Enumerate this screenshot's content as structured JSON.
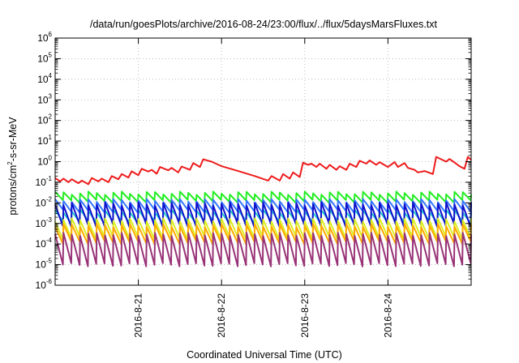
{
  "chart_data": {
    "type": "line",
    "title": "/data/run/goesPlots/archive/2016-08-24/23:00/flux/../flux/5daysMarsFluxes.txt",
    "xlabel": "Coordinated Universal Time (UTC)",
    "ylabel": {
      "pre": "protons/cm",
      "sup": "2",
      "post": "-s-sr-MeV"
    },
    "yscale": "log",
    "ylim": [
      1e-06,
      1000000.0
    ],
    "xlim": [
      0,
      5
    ],
    "y_ticks": [
      {
        "exp": "-6",
        "value": 1e-06
      },
      {
        "exp": "-5",
        "value": 1e-05
      },
      {
        "exp": "-4",
        "value": 0.0001
      },
      {
        "exp": "-3",
        "value": 0.001
      },
      {
        "exp": "-2",
        "value": 0.01
      },
      {
        "exp": "-1",
        "value": 0.1
      },
      {
        "exp": "0",
        "value": 1
      },
      {
        "exp": "1",
        "value": 10
      },
      {
        "exp": "2",
        "value": 100
      },
      {
        "exp": "3",
        "value": 1000
      },
      {
        "exp": "4",
        "value": 10000
      },
      {
        "exp": "5",
        "value": 100000
      },
      {
        "exp": "6",
        "value": 1000000
      }
    ],
    "y_tick_base": "10",
    "x_ticks": [
      {
        "label": "2016-8-21",
        "value": 1
      },
      {
        "label": "2016-8-22",
        "value": 2
      },
      {
        "label": "2016-8-23",
        "value": 3
      },
      {
        "label": "2016-8-24",
        "value": 4
      }
    ],
    "grid": true,
    "series": [
      {
        "color": "#ee1c1c",
        "x": [
          0.0,
          0.06,
          0.1,
          0.16,
          0.2,
          0.28,
          0.32,
          0.4,
          0.44,
          0.52,
          0.56,
          0.64,
          0.68,
          0.76,
          0.8,
          0.88,
          0.92,
          1.0,
          1.04,
          1.12,
          1.16,
          1.22,
          1.26,
          1.36,
          1.4,
          1.48,
          1.52,
          1.62,
          1.66,
          1.74,
          1.78,
          1.84,
          1.88,
          2.0,
          2.2,
          2.4,
          2.56,
          2.6,
          2.7,
          2.74,
          2.82,
          2.86,
          2.94,
          2.98,
          3.04,
          3.08,
          3.14,
          3.18,
          3.26,
          3.3,
          3.38,
          3.42,
          3.5,
          3.54,
          3.62,
          3.66,
          3.74,
          3.78,
          3.86,
          3.9,
          4.0,
          4.08,
          4.12,
          4.2,
          4.24,
          4.32,
          4.36,
          4.44,
          4.54,
          4.58,
          4.7,
          4.74,
          4.82,
          4.86,
          4.92,
          4.96,
          5.0
        ],
        "values": [
          0.16,
          0.11,
          0.15,
          0.1,
          0.14,
          0.09,
          0.12,
          0.08,
          0.16,
          0.11,
          0.15,
          0.1,
          0.2,
          0.14,
          0.25,
          0.17,
          0.34,
          0.22,
          0.45,
          0.33,
          0.4,
          0.26,
          0.55,
          0.38,
          0.5,
          0.3,
          0.58,
          0.4,
          0.85,
          0.55,
          1.3,
          1.1,
          1.0,
          0.6,
          0.35,
          0.2,
          0.12,
          0.2,
          0.12,
          0.25,
          0.15,
          0.3,
          0.18,
          0.9,
          0.7,
          0.8,
          0.55,
          0.8,
          0.45,
          0.7,
          0.4,
          0.6,
          0.4,
          0.8,
          0.55,
          1.1,
          0.8,
          1.15,
          0.7,
          0.95,
          0.55,
          0.95,
          0.55,
          0.85,
          0.5,
          0.4,
          0.3,
          0.35,
          0.25,
          1.7,
          1.0,
          1.35,
          0.8,
          0.6,
          0.45,
          1.7,
          1.2
        ]
      },
      {
        "color": "#22ee22",
        "base": 0.012,
        "peak": 0.03
      },
      {
        "color": "#3377ff",
        "base": 0.004,
        "peak": 0.013
      },
      {
        "color": "#22cccc",
        "base": 0.0012,
        "peak": 0.004
      },
      {
        "color": "#1111cc",
        "base": 0.0008,
        "peak": 0.009
      },
      {
        "color": "#ddee22",
        "base": 0.0002,
        "peak": 0.0015
      },
      {
        "color": "#ffaa00",
        "base": 0.00012,
        "peak": 0.0008
      },
      {
        "color": "#993377",
        "base": 1e-05,
        "peak": 0.0003
      }
    ],
    "sawtooth_period_days": 0.1
  }
}
